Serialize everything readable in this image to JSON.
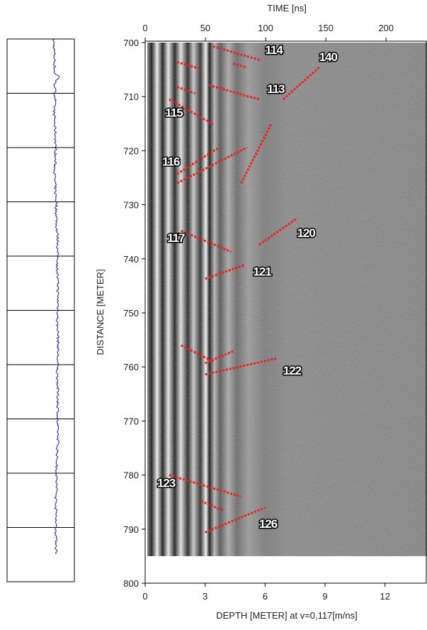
{
  "chart_data": {
    "type": "radargram",
    "x2_label": "TIME [ns]",
    "x_label": "DEPTH [METER] at v=0,117[m/ns]",
    "y_label": "DISTANCE [METER]",
    "xlim": [
      0,
      14.1
    ],
    "xticks": [
      0,
      3,
      6,
      9,
      12
    ],
    "x2lim": [
      0,
      234
    ],
    "x2ticks": [
      0,
      50,
      100,
      150,
      200
    ],
    "ylim": [
      700,
      800
    ],
    "yticks": [
      700,
      710,
      720,
      730,
      740,
      750,
      760,
      770,
      780,
      790,
      800
    ],
    "y_inverted": true,
    "record_extent": [
      700,
      795
    ],
    "reflector_color": "#e8221c",
    "reflectors": [
      {
        "label": "114",
        "label_x": 6.0,
        "label_y": 701.3,
        "segments": [
          [
            3.4,
            700.7,
            5.8,
            703.3
          ],
          [
            1.6,
            703.6,
            2.7,
            704.8
          ],
          [
            4.4,
            703.9,
            5.1,
            704.6
          ]
        ]
      },
      {
        "label": "140",
        "label_x": 8.7,
        "label_y": 702.6,
        "segments": [
          [
            6.9,
            710.5,
            8.7,
            704.6
          ]
        ]
      },
      {
        "label": "113",
        "label_x": 6.1,
        "label_y": 708.5,
        "segments": [
          [
            3.2,
            707.9,
            5.7,
            710.5
          ],
          [
            1.6,
            708.2,
            2.5,
            709.4
          ]
        ]
      },
      {
        "label": "115",
        "label_x": 1.0,
        "label_y": 712.9,
        "segments": [
          [
            1.2,
            710.5,
            3.4,
            715.1
          ]
        ]
      },
      {
        "label": "116",
        "label_x": 0.85,
        "label_y": 722.0,
        "segments": [
          [
            1.6,
            724.3,
            3.7,
            719.4
          ],
          [
            1.6,
            726.0,
            5.1,
            719.4
          ],
          [
            4.8,
            726.0,
            6.3,
            715.1
          ]
        ]
      },
      {
        "label": "117",
        "label_x": 1.1,
        "label_y": 736.1,
        "segments": [
          [
            1.8,
            734.8,
            4.3,
            738.7
          ]
        ]
      },
      {
        "label": "120",
        "label_x": 7.6,
        "label_y": 735.2,
        "segments": [
          [
            5.7,
            737.4,
            7.6,
            732.5
          ]
        ]
      },
      {
        "label": "121",
        "label_x": 5.4,
        "label_y": 742.3,
        "segments": [
          [
            3.0,
            743.7,
            5.0,
            741.1
          ]
        ]
      },
      {
        "label": "122",
        "label_x": 6.9,
        "label_y": 760.6,
        "segments": [
          [
            3.0,
            761.4,
            6.6,
            758.4
          ],
          [
            1.8,
            756.0,
            3.4,
            759.0
          ],
          [
            3.0,
            759.3,
            4.4,
            757.1
          ]
        ]
      },
      {
        "label": "123",
        "label_x": 0.6,
        "label_y": 781.4,
        "segments": [
          [
            1.2,
            780.0,
            4.8,
            784.0
          ],
          [
            2.8,
            784.8,
            3.9,
            786.6
          ]
        ]
      },
      {
        "label": "126",
        "label_x": 5.7,
        "label_y": 789.0,
        "segments": [
          [
            3.0,
            790.6,
            6.0,
            786.0
          ]
        ]
      }
    ]
  }
}
